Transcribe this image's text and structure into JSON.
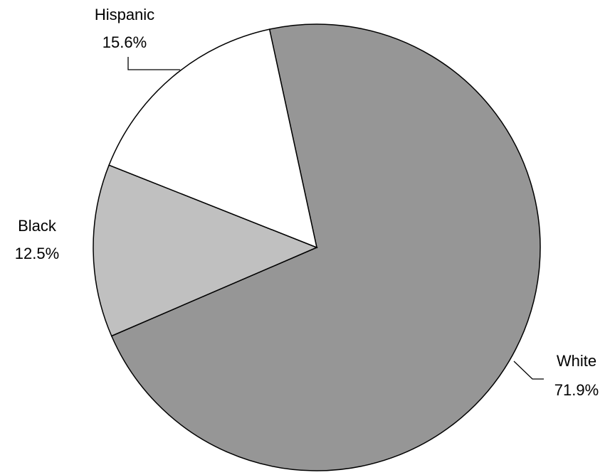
{
  "chart_data": {
    "type": "pie",
    "start_angle_deg": -12.2,
    "direction": "clockwise",
    "slices": [
      {
        "label": "White",
        "value": 71.9,
        "value_label": "71.9%",
        "color": "#969696"
      },
      {
        "label": "Black",
        "value": 12.5,
        "value_label": "12.5%",
        "color": "#C0C0C0"
      },
      {
        "label": "Hispanic",
        "value": 15.6,
        "value_label": "15.6%",
        "color": "#FFFFFF"
      }
    ],
    "legend": "none"
  }
}
